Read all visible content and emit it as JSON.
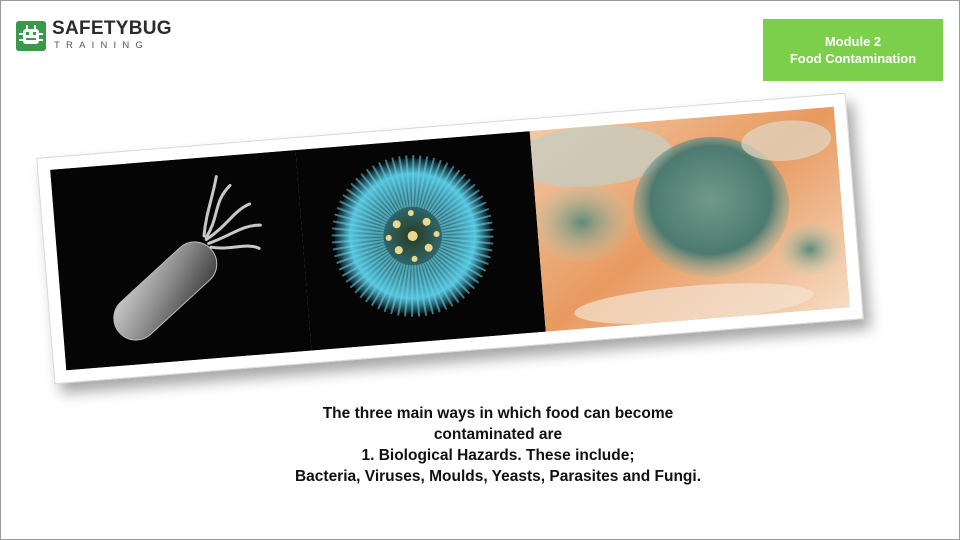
{
  "logo": {
    "brand": "SAFETYBUG",
    "sub": "TRAINING"
  },
  "module_badge": {
    "line1": "Module 2",
    "line2": "Food Contamination",
    "color": "#7ccf4a"
  },
  "images": {
    "panel1": "bacterium-image",
    "panel2": "virus-image",
    "panel3": "mould-image"
  },
  "caption": {
    "line1": "The three main ways in which food can  become",
    "line2": "contaminated are",
    "line3": "1. Biological Hazards. These include;",
    "line4": "Bacteria, Viruses, Moulds, Yeasts, Parasites and Fungi."
  }
}
